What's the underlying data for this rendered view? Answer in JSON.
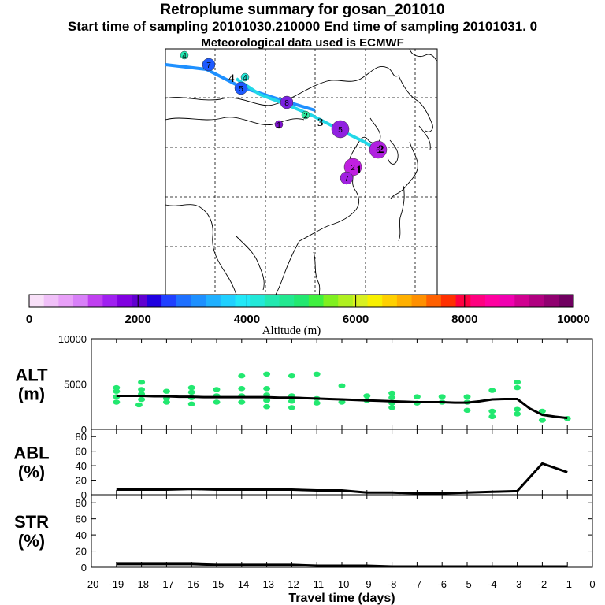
{
  "header": {
    "title": "Retroplume summary for gosan_201010",
    "sampling_line": "Start time of sampling 20101030.210000     End time of sampling 20101031.     0",
    "met_line": "Meteorological data used is ECMWF"
  },
  "colors": {
    "track_older": "#1e90ff",
    "track_recent": "#22d8e8",
    "points": "#22e870",
    "line": "#000000"
  },
  "map": {
    "day_labels": [
      "1",
      "2",
      "3",
      "4"
    ],
    "markers": [
      {
        "label": "4",
        "color": "#22e8b0",
        "size": "small"
      },
      {
        "label": "7",
        "color": "#1e5aff",
        "size": "medium"
      },
      {
        "label": "4",
        "color": "#22e8d8",
        "size": "small"
      },
      {
        "label": "5",
        "color": "#1e5aff",
        "size": "medium"
      },
      {
        "label": "8",
        "color": "#7a20e0",
        "size": "medium"
      },
      {
        "label": "2",
        "color": "#2ee8a0",
        "size": "small"
      },
      {
        "label": "5",
        "color": "#9020e0",
        "size": "large"
      },
      {
        "label": "1",
        "color": "#8010d0",
        "size": "small"
      },
      {
        "label": "6",
        "color": "#b020e0",
        "size": "large"
      },
      {
        "label": "2",
        "color": "#c020e0",
        "size": "large"
      },
      {
        "label": "7",
        "color": "#a020e0",
        "size": "medium"
      }
    ]
  },
  "colorbar": {
    "title": "Altitude (m)",
    "ticks": [
      "0",
      "2000",
      "4000",
      "6000",
      "8000",
      "10000"
    ],
    "colors": [
      "#f8e0f8",
      "#f0c0f8",
      "#e8a0f8",
      "#d880f8",
      "#c040f0",
      "#a020f0",
      "#8000e0",
      "#6000d0",
      "#2000e0",
      "#2040ff",
      "#1e70ff",
      "#1e90ff",
      "#20b0ff",
      "#20d0ff",
      "#22e8f8",
      "#22e8d8",
      "#22e8b0",
      "#22e890",
      "#22e870",
      "#40f040",
      "#80f020",
      "#b0f020",
      "#d8f020",
      "#f8f000",
      "#ffd000",
      "#ffb000",
      "#ff9000",
      "#ff6000",
      "#ff3000",
      "#ff0040",
      "#ff0080",
      "#ff00a0",
      "#f000b0",
      "#d00090",
      "#b00080",
      "#900070",
      "#700060"
    ]
  },
  "chart_data": [
    {
      "type": "scatter",
      "name": "altitude",
      "label_line1": "ALT",
      "label_line2": "(m)",
      "ylim": [
        0,
        10000
      ],
      "yticks": [
        "0",
        "5000",
        "10000"
      ],
      "xlim": [
        -20,
        0
      ],
      "x": [
        -19,
        -18.5,
        -18,
        -17.5,
        -17,
        -16.5,
        -16,
        -15.5,
        -15,
        -14.5,
        -14,
        -13.5,
        -13,
        -12.5,
        -12,
        -11.5,
        -11,
        -10.5,
        -10,
        -9.5,
        -9,
        -8.5,
        -8,
        -7.5,
        -7,
        -6.5,
        -6,
        -5.5,
        -5,
        -4.5,
        -4,
        -3.5,
        -3,
        -2.5,
        -2,
        -1.5,
        -1
      ],
      "line": [
        3700,
        3700,
        3700,
        3650,
        3650,
        3600,
        3600,
        3550,
        3550,
        3550,
        3550,
        3550,
        3550,
        3500,
        3500,
        3450,
        3400,
        3350,
        3300,
        3250,
        3200,
        3150,
        3100,
        3050,
        3000,
        3000,
        3000,
        2950,
        2950,
        3100,
        3300,
        3350,
        3350,
        2300,
        1600,
        1400,
        1250
      ],
      "points": [
        [
          -19,
          3000
        ],
        [
          -19,
          3600
        ],
        [
          -19,
          4200
        ],
        [
          -19,
          4600
        ],
        [
          -18.1,
          2700
        ],
        [
          -18,
          3300
        ],
        [
          -18,
          3900
        ],
        [
          -18,
          4400
        ],
        [
          -18,
          5200
        ],
        [
          -17,
          3000
        ],
        [
          -17,
          3400
        ],
        [
          -17,
          4200
        ],
        [
          -16,
          2800
        ],
        [
          -16,
          3500
        ],
        [
          -16,
          4100
        ],
        [
          -16,
          4600
        ],
        [
          -15,
          3000
        ],
        [
          -15,
          3700
        ],
        [
          -15,
          4400
        ],
        [
          -14,
          3000
        ],
        [
          -14,
          3700
        ],
        [
          -14,
          4500
        ],
        [
          -14,
          5900
        ],
        [
          -13,
          2500
        ],
        [
          -13,
          3200
        ],
        [
          -13,
          3800
        ],
        [
          -13,
          4500
        ],
        [
          -13,
          6100
        ],
        [
          -12,
          2400
        ],
        [
          -12,
          3100
        ],
        [
          -12,
          3700
        ],
        [
          -12,
          5900
        ],
        [
          -11,
          2900
        ],
        [
          -11,
          3400
        ],
        [
          -11,
          6100
        ],
        [
          -10,
          3000
        ],
        [
          -10,
          4800
        ],
        [
          -9,
          3200
        ],
        [
          -9,
          3700
        ],
        [
          -8,
          2400
        ],
        [
          -8,
          2900
        ],
        [
          -8,
          3500
        ],
        [
          -8,
          4000
        ],
        [
          -7,
          2900
        ],
        [
          -7,
          3600
        ],
        [
          -6,
          3000
        ],
        [
          -6,
          3600
        ],
        [
          -5,
          2100
        ],
        [
          -5,
          3000
        ],
        [
          -5,
          3600
        ],
        [
          -4,
          1400
        ],
        [
          -4,
          2000
        ],
        [
          -4,
          4300
        ],
        [
          -3,
          1700
        ],
        [
          -3,
          2200
        ],
        [
          -3,
          4600
        ],
        [
          -3,
          5200
        ],
        [
          -2,
          1000
        ],
        [
          -2,
          2000
        ],
        [
          -1,
          1200
        ]
      ]
    },
    {
      "type": "line",
      "name": "abl",
      "label_line1": "ABL",
      "label_line2": "(%)",
      "ylim": [
        0,
        90
      ],
      "yticks": [
        "0",
        "20",
        "40",
        "60",
        "80"
      ],
      "xlim": [
        -20,
        0
      ],
      "x": [
        -19,
        -18,
        -17,
        -16,
        -15,
        -14,
        -13,
        -12,
        -11,
        -10,
        -9,
        -8,
        -7,
        -6,
        -5,
        -4,
        -3,
        -2,
        -1
      ],
      "y": [
        7,
        7,
        7,
        8,
        7,
        7,
        7,
        7,
        6,
        6,
        3,
        3,
        2,
        2,
        3,
        4,
        5,
        43,
        31
      ]
    },
    {
      "type": "line",
      "name": "str",
      "label_line1": "STR",
      "label_line2": "(%)",
      "ylim": [
        0,
        90
      ],
      "yticks": [
        "0",
        "20",
        "40",
        "60",
        "80"
      ],
      "xlim": [
        -20,
        0
      ],
      "x": [
        -19,
        -18,
        -17,
        -16,
        -15,
        -14,
        -13,
        -12,
        -11,
        -10,
        -9,
        -8,
        -7,
        -6,
        -5,
        -4,
        -3,
        -2,
        -1
      ],
      "y": [
        4,
        4,
        4,
        4,
        3,
        3,
        3,
        3,
        2,
        2,
        2,
        1,
        1,
        1,
        1,
        1,
        1,
        1,
        1
      ],
      "xlabel": "Travel time (days)",
      "xticks": [
        "-20",
        "-19",
        "-18",
        "-17",
        "-16",
        "-15",
        "-14",
        "-13",
        "-12",
        "-11",
        "-10",
        "-9",
        "-8",
        "-7",
        "-6",
        "-5",
        "-4",
        "-3",
        "-2",
        "-1",
        "0"
      ]
    }
  ]
}
